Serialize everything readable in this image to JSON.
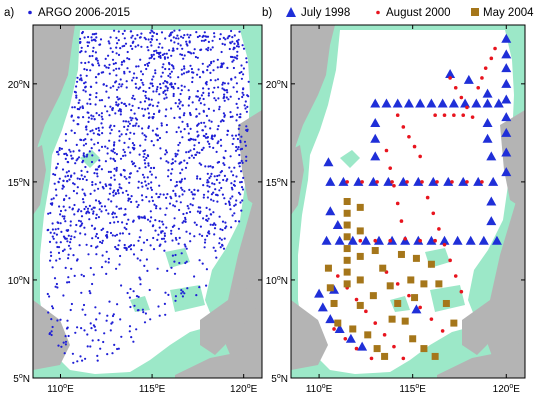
{
  "colors": {
    "land": "#b4b4b4",
    "shelf": "#9ce8c8",
    "sea": "#ffffff",
    "argo": "#1f1fd6",
    "july1998": "#1f2fd8",
    "aug2000": "#e8141e",
    "may2004": "#a5761a"
  },
  "panels": [
    {
      "id": "a",
      "label": "a)",
      "legend": [
        {
          "marker": "dot",
          "text": "ARGO 2006-2015"
        }
      ],
      "x_ticks": [
        "110",
        "115",
        "120"
      ],
      "y_ticks": [
        "5",
        "10",
        "15",
        "20"
      ]
    },
    {
      "id": "b",
      "label": "b)",
      "legend": [
        {
          "marker": "triangle",
          "text": "July 1998"
        },
        {
          "marker": "diamond",
          "text": "August 2000"
        },
        {
          "marker": "square",
          "text": "May 2004"
        }
      ],
      "x_ticks": [
        "110",
        "115",
        "120"
      ],
      "y_ticks": [
        "5",
        "10",
        "15",
        "20"
      ]
    }
  ],
  "axis_units": {
    "lon_suffix": "E",
    "lat_suffix": "N",
    "degree": "o"
  },
  "chart_data": {
    "type": "scatter",
    "lon_range": [
      108.5,
      121
    ],
    "lat_range": [
      5,
      23
    ],
    "series": [
      {
        "name": "July 1998",
        "marker": "triangle",
        "points": [
          [
            120,
            22.3
          ],
          [
            120,
            21.5
          ],
          [
            120,
            20.8
          ],
          [
            120,
            20
          ],
          [
            120,
            19.2
          ],
          [
            120,
            18.3
          ],
          [
            120,
            17.5
          ],
          [
            120,
            16.5
          ],
          [
            120,
            15.5
          ],
          [
            117,
            20.5
          ],
          [
            118,
            20.2
          ],
          [
            119,
            19.5
          ],
          [
            119.6,
            19
          ],
          [
            113,
            19
          ],
          [
            113.6,
            19
          ],
          [
            114.2,
            19
          ],
          [
            114.8,
            19
          ],
          [
            115.4,
            19
          ],
          [
            116,
            19
          ],
          [
            116.6,
            19
          ],
          [
            117.2,
            19
          ],
          [
            117.8,
            19
          ],
          [
            118.4,
            19
          ],
          [
            119,
            19
          ],
          [
            113,
            18
          ],
          [
            119,
            18
          ],
          [
            113,
            17.2
          ],
          [
            119,
            17.2
          ],
          [
            113,
            16.3
          ],
          [
            119.2,
            16.3
          ],
          [
            110.5,
            16
          ],
          [
            110.6,
            15
          ],
          [
            111.3,
            15
          ],
          [
            112.1,
            15
          ],
          [
            112.9,
            15
          ],
          [
            113.7,
            15
          ],
          [
            114.5,
            15
          ],
          [
            115.3,
            15
          ],
          [
            116.1,
            15
          ],
          [
            116.9,
            15
          ],
          [
            117.7,
            15
          ],
          [
            118.5,
            15
          ],
          [
            119.3,
            15
          ],
          [
            119.2,
            14
          ],
          [
            119.2,
            13
          ],
          [
            110.6,
            13.5
          ],
          [
            111,
            12.8
          ],
          [
            110.4,
            12
          ],
          [
            111.1,
            12
          ],
          [
            111.8,
            12
          ],
          [
            112.5,
            12
          ],
          [
            113.2,
            12
          ],
          [
            113.9,
            12
          ],
          [
            114.6,
            12
          ],
          [
            115.3,
            12
          ],
          [
            116,
            12
          ],
          [
            116.7,
            12
          ],
          [
            117.4,
            12
          ],
          [
            118.1,
            12
          ],
          [
            118.8,
            12
          ],
          [
            119.5,
            12
          ],
          [
            110,
            9.3
          ],
          [
            110.2,
            8.6
          ],
          [
            110.6,
            8
          ],
          [
            111.1,
            7.5
          ],
          [
            111.7,
            7
          ],
          [
            112.3,
            6.6
          ],
          [
            115.2,
            8.5
          ],
          [
            110.8,
            9.5
          ]
        ]
      },
      {
        "name": "August 2000",
        "marker": "diamond",
        "points": [
          [
            119.4,
            21.8
          ],
          [
            119.2,
            21.3
          ],
          [
            118.9,
            20.8
          ],
          [
            118.7,
            20.3
          ],
          [
            118.5,
            19.8
          ],
          [
            117,
            20.3
          ],
          [
            117.3,
            19.8
          ],
          [
            117.6,
            19.3
          ],
          [
            117.9,
            18.8
          ],
          [
            118.2,
            18.3
          ],
          [
            116.2,
            18.4
          ],
          [
            116.7,
            18.4
          ],
          [
            117.2,
            18.4
          ],
          [
            117.7,
            18.4
          ],
          [
            114.2,
            18.4
          ],
          [
            114.5,
            17.8
          ],
          [
            114.8,
            17.3
          ],
          [
            115.1,
            16.8
          ],
          [
            115.4,
            16.3
          ],
          [
            113.6,
            16.6
          ],
          [
            113.8,
            15.7
          ],
          [
            114,
            14.8
          ],
          [
            114.2,
            13.9
          ],
          [
            114.4,
            13
          ],
          [
            114.6,
            12.1
          ],
          [
            111.5,
            15
          ],
          [
            112.3,
            15
          ],
          [
            113.1,
            15
          ],
          [
            113.9,
            15
          ],
          [
            114.7,
            15
          ],
          [
            115.5,
            15
          ],
          [
            116.3,
            15
          ],
          [
            117.1,
            15
          ],
          [
            117.9,
            15
          ],
          [
            118.7,
            15
          ],
          [
            115.8,
            14.2
          ],
          [
            116.1,
            13.4
          ],
          [
            116.4,
            12.6
          ],
          [
            116.7,
            11.8
          ],
          [
            117,
            11
          ],
          [
            117.3,
            10.2
          ],
          [
            117.6,
            9.4
          ],
          [
            112.2,
            12
          ],
          [
            113,
            12
          ],
          [
            113.8,
            12
          ],
          [
            115.4,
            12
          ],
          [
            116.2,
            12
          ],
          [
            111,
            10.2
          ],
          [
            111.5,
            9.6
          ],
          [
            112,
            9
          ],
          [
            112.5,
            8.4
          ],
          [
            113,
            7.8
          ],
          [
            113.5,
            7.2
          ],
          [
            114,
            6.6
          ],
          [
            114.5,
            6
          ],
          [
            113.6,
            10.4
          ],
          [
            114.2,
            9.8
          ],
          [
            114.8,
            9.2
          ],
          [
            115.4,
            8.6
          ],
          [
            116,
            8
          ],
          [
            116.6,
            7.4
          ],
          [
            110.8,
            7.5
          ],
          [
            111.4,
            7
          ],
          [
            112,
            6.5
          ],
          [
            112.8,
            6
          ]
        ]
      },
      {
        "name": "May 2004",
        "marker": "square",
        "points": [
          [
            111.5,
            14
          ],
          [
            111.5,
            13.4
          ],
          [
            111.5,
            12.8
          ],
          [
            111.5,
            12.2
          ],
          [
            111.5,
            11.6
          ],
          [
            111.5,
            11
          ],
          [
            111.5,
            10.4
          ],
          [
            111.5,
            9.8
          ],
          [
            112.2,
            13.7
          ],
          [
            112.2,
            12.5
          ],
          [
            112.2,
            11.2
          ],
          [
            112.2,
            10
          ],
          [
            112.2,
            8.7
          ],
          [
            110.5,
            10.6
          ],
          [
            110.6,
            9.6
          ],
          [
            110.8,
            8.8
          ],
          [
            111,
            7.8
          ],
          [
            113,
            11.5
          ],
          [
            113.4,
            10.6
          ],
          [
            113.8,
            9.7
          ],
          [
            114.2,
            8.8
          ],
          [
            114.6,
            7.9
          ],
          [
            115,
            7
          ],
          [
            114.4,
            11.3
          ],
          [
            115.2,
            11.1
          ],
          [
            116,
            10.8
          ],
          [
            116.4,
            9.8
          ],
          [
            116.8,
            8.8
          ],
          [
            117.2,
            7.8
          ],
          [
            112.6,
            7.2
          ],
          [
            113.1,
            6.5
          ],
          [
            113.5,
            6.1
          ],
          [
            115.6,
            6.5
          ],
          [
            116.2,
            6.1
          ],
          [
            115.6,
            9.8
          ],
          [
            114.9,
            10
          ],
          [
            112.9,
            9.2
          ],
          [
            111.8,
            7.5
          ],
          [
            113.9,
            8
          ],
          [
            115.1,
            9.1
          ]
        ]
      }
    ]
  }
}
